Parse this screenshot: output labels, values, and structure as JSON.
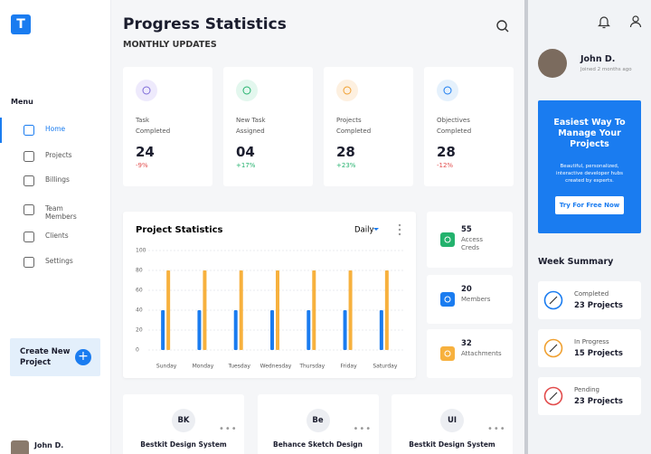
{
  "sidebar": {
    "logo": "T",
    "menu_title": "Menu",
    "menu": [
      {
        "label": "Home"
      },
      {
        "label": "Projects"
      },
      {
        "label": "Billings"
      },
      {
        "label": "Team Members"
      },
      {
        "label": "Clients"
      },
      {
        "label": "Settings"
      }
    ],
    "create": "Create New Project",
    "user": "John D."
  },
  "header": {
    "title": "Progress Statistics",
    "subtitle": "MONTHLY UPDATES"
  },
  "stats": [
    {
      "label": "Task Completed",
      "value": 24,
      "change": "-9%"
    },
    {
      "label": "New Task Assigned",
      "value": "04",
      "change": "+17%"
    },
    {
      "label": "Projects Completed",
      "value": 28,
      "change": "+23%"
    },
    {
      "label": "Objectives Completed",
      "value": 28,
      "change": "-12%"
    }
  ],
  "chart_data": {
    "type": "bar",
    "title": "Project Statistics",
    "filter": "Daily",
    "categories": [
      "Sunday",
      "Monday",
      "Tuesday",
      "Wednesday",
      "Thursday",
      "Friday",
      "Saturday"
    ],
    "series": [
      {
        "color": "#1a7cf0",
        "values": [
          40,
          40,
          40,
          40,
          40,
          40,
          40
        ]
      },
      {
        "color": "#f7b13e",
        "values": [
          80,
          80,
          80,
          80,
          80,
          80,
          80
        ]
      }
    ],
    "ylim": [
      0,
      100
    ],
    "yticks": [
      0,
      20,
      40,
      60,
      80,
      100
    ],
    "grid": true
  },
  "resources": [
    {
      "value": 55,
      "label": "Access Creds"
    },
    {
      "value": 20,
      "label": "Members"
    },
    {
      "value": 32,
      "label": "Attachments"
    }
  ],
  "projects": [
    {
      "initials": "BK",
      "name": "Bestkit Design System"
    },
    {
      "initials": "Be",
      "name": "Behance Sketch Design"
    },
    {
      "initials": "UI",
      "name": "Bestkit Design System"
    }
  ],
  "profile": {
    "name": "John D.",
    "joined": "Joined 2 months ago"
  },
  "promo": {
    "title": "Easiest Way To Manage Your Projects",
    "text": "Beautiful, personalized, interactive developer hubs created by experts.",
    "button": "Try For Free Now"
  },
  "summary": {
    "title": "Week Summary",
    "items": [
      {
        "label": "Completed",
        "value": "23 Projects"
      },
      {
        "label": "In Progress",
        "value": "15 Projects"
      },
      {
        "label": "Pending",
        "value": "23 Projects"
      }
    ]
  }
}
